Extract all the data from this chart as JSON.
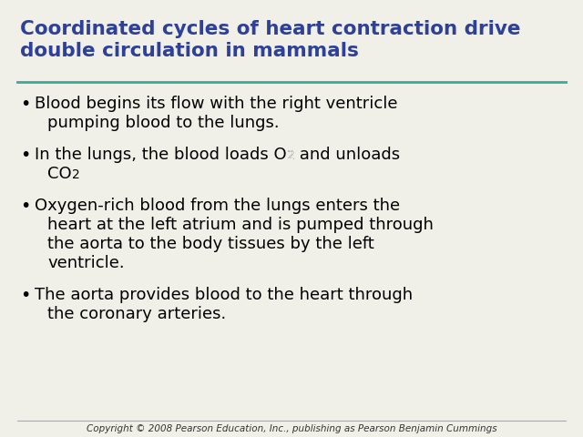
{
  "title_line1": "Coordinated cycles of heart contraction drive",
  "title_line2": "double circulation in mammals",
  "title_color": "#2E4099",
  "title_fontsize": 15.5,
  "separator_color": "#3AAA9A",
  "background_color": "#F0F0E8",
  "bullet_color": "#000000",
  "bullet_fontsize": 13.0,
  "footer_text": "Copyright © 2008 Pearson Education, Inc., publishing as Pearson Benjamin Cummings",
  "footer_fontsize": 7.5,
  "footer_color": "#333333",
  "sep_color_footer": "#AAAAAA"
}
